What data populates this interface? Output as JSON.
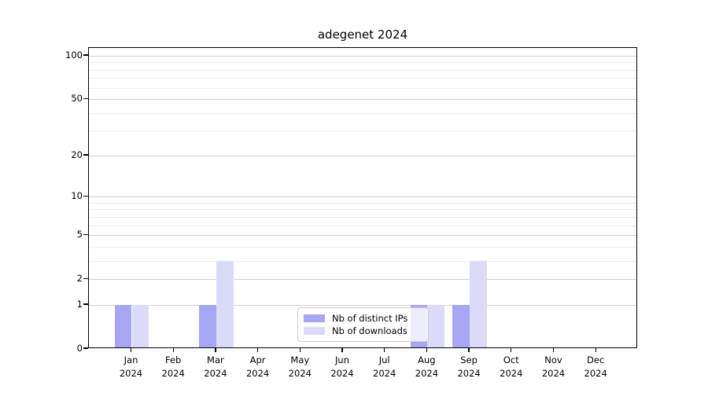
{
  "chart_data": {
    "type": "bar",
    "title": "adegenet 2024",
    "categories": [
      "Jan",
      "Feb",
      "Mar",
      "Apr",
      "May",
      "Jun",
      "Jul",
      "Aug",
      "Sep",
      "Oct",
      "Nov",
      "Dec"
    ],
    "category_year": "2024",
    "series": [
      {
        "name": "Nb of distinct IPs",
        "color": "#a6a6f2",
        "values": [
          1,
          0,
          1,
          0,
          0,
          0,
          0,
          1,
          1,
          0,
          0,
          0
        ]
      },
      {
        "name": "Nb of downloads",
        "color": "#dbdbf9",
        "values": [
          1,
          0,
          3,
          0,
          0,
          0,
          0,
          1,
          3,
          0,
          0,
          0
        ]
      }
    ],
    "xlabel": "",
    "ylabel": "",
    "yscale": "log1p",
    "ylim": [
      0,
      114
    ],
    "yticks_labeled": [
      0,
      1,
      2,
      5,
      10,
      20,
      50,
      100
    ],
    "yticks_minor": [
      3,
      4,
      6,
      7,
      8,
      9,
      30,
      40,
      60,
      70,
      80,
      90
    ],
    "grid": true,
    "legend_position": "lower center"
  }
}
